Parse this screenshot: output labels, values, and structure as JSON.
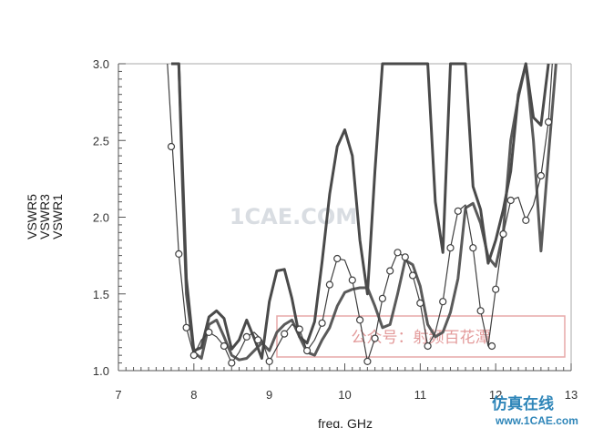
{
  "chart_data": {
    "type": "line",
    "xlabel": "freq, GHz",
    "ylabels": [
      "VSWR5",
      "VSWR3",
      "VSWR1"
    ],
    "xlim": [
      7,
      13
    ],
    "ylim": [
      1.0,
      3.0
    ],
    "x_ticks": [
      "7",
      "8",
      "9",
      "10",
      "11",
      "12",
      "13"
    ],
    "y_ticks": [
      "1.0",
      "1.5",
      "2.0",
      "2.5",
      "3.0"
    ],
    "series": [
      {
        "name": "VSWR5",
        "color": "#3f3f3f",
        "marker": "circle",
        "x": [
          7.65,
          7.8,
          7.9,
          8.0,
          8.1,
          8.2,
          8.3,
          8.4,
          8.5,
          8.6,
          8.7,
          8.8,
          8.9,
          9.0,
          9.1,
          9.2,
          9.3,
          9.4,
          9.5,
          9.6,
          9.7,
          9.8,
          9.9,
          10.0,
          10.1,
          10.2,
          10.3,
          10.4,
          10.5,
          10.6,
          10.7,
          10.8,
          10.9,
          11.0,
          11.1,
          11.2,
          11.3,
          11.4,
          11.5,
          11.6,
          11.7,
          11.8,
          11.9,
          12.0,
          12.1,
          12.2,
          12.3,
          12.4,
          12.5,
          12.6,
          12.7,
          12.75
        ],
        "y": [
          3.0,
          1.76,
          1.28,
          1.1,
          1.2,
          1.25,
          1.22,
          1.16,
          1.05,
          1.12,
          1.22,
          1.25,
          1.2,
          1.06,
          1.15,
          1.24,
          1.3,
          1.27,
          1.13,
          1.2,
          1.31,
          1.56,
          1.73,
          1.72,
          1.59,
          1.33,
          1.06,
          1.21,
          1.47,
          1.65,
          1.77,
          1.74,
          1.62,
          1.44,
          1.16,
          1.25,
          1.45,
          1.8,
          2.04,
          2.08,
          1.8,
          1.39,
          1.16,
          1.53,
          1.89,
          2.11,
          2.13,
          1.98,
          2.08,
          2.27,
          2.62,
          3.0
        ],
        "marker_x": [
          7.7,
          7.8,
          7.9,
          8.0,
          8.2,
          8.4,
          8.5,
          8.7,
          8.85,
          9.0,
          9.2,
          9.4,
          9.5,
          9.7,
          9.8,
          9.9,
          10.1,
          10.2,
          10.3,
          10.4,
          10.5,
          10.6,
          10.7,
          10.8,
          10.9,
          11.0,
          11.1,
          11.3,
          11.4,
          11.5,
          11.7,
          11.8,
          11.95,
          12.0,
          12.1,
          12.2,
          12.4,
          12.6,
          12.7
        ],
        "marker_y": [
          2.46,
          1.76,
          1.28,
          1.1,
          1.25,
          1.16,
          1.05,
          1.22,
          1.2,
          1.06,
          1.24,
          1.27,
          1.13,
          1.31,
          1.56,
          1.73,
          1.59,
          1.33,
          1.06,
          1.21,
          1.47,
          1.65,
          1.77,
          1.74,
          1.62,
          1.44,
          1.16,
          1.45,
          1.8,
          2.04,
          1.8,
          1.39,
          1.16,
          1.53,
          1.89,
          2.11,
          1.98,
          2.27,
          2.62
        ]
      },
      {
        "name": "VSWR3",
        "color": "#4a4a4a",
        "marker": "none",
        "x": [
          7.7,
          7.8,
          7.9,
          8.0,
          8.1,
          8.2,
          8.3,
          8.4,
          8.5,
          8.6,
          8.7,
          8.8,
          8.9,
          9.0,
          9.1,
          9.2,
          9.3,
          9.4,
          9.5,
          9.6,
          9.7,
          9.8,
          9.9,
          10.0,
          10.1,
          10.2,
          10.3,
          10.4,
          10.5,
          10.6,
          10.7,
          10.8,
          10.9,
          11.0,
          11.1,
          11.2,
          11.3,
          11.4,
          11.5,
          11.6,
          11.7,
          11.8,
          11.9,
          12.0,
          12.1,
          12.2,
          12.3,
          12.4,
          12.5,
          12.6,
          12.7
        ],
        "y": [
          3.0,
          3.0,
          1.6,
          1.13,
          1.15,
          1.35,
          1.39,
          1.34,
          1.14,
          1.2,
          1.33,
          1.21,
          1.08,
          1.45,
          1.65,
          1.66,
          1.47,
          1.22,
          1.18,
          1.32,
          1.71,
          2.15,
          2.46,
          2.57,
          2.4,
          1.85,
          1.5,
          2.3,
          3.0,
          3.0,
          3.0,
          3.0,
          3.0,
          3.0,
          3.0,
          2.1,
          1.77,
          3.0,
          3.0,
          3.0,
          2.2,
          2.05,
          1.7,
          1.85,
          2.05,
          2.3,
          2.8,
          3.0,
          2.65,
          2.6,
          3.0
        ]
      },
      {
        "name": "VSWR1",
        "color": "#5a5a5a",
        "marker": "none",
        "x": [
          7.75,
          7.8,
          7.85,
          7.9,
          8.0,
          8.1,
          8.2,
          8.3,
          8.4,
          8.5,
          8.6,
          8.7,
          8.8,
          8.9,
          9.0,
          9.1,
          9.2,
          9.3,
          9.4,
          9.5,
          9.6,
          9.7,
          9.8,
          9.9,
          10.0,
          10.1,
          10.2,
          10.3,
          10.4,
          10.5,
          10.6,
          10.7,
          10.8,
          10.9,
          11.0,
          11.1,
          11.2,
          11.3,
          11.4,
          11.5,
          11.6,
          11.7,
          11.8,
          11.9,
          12.0,
          12.1,
          12.2,
          12.3,
          12.4,
          12.5,
          12.6,
          12.7,
          12.8
        ],
        "y": [
          3.0,
          3.0,
          2.2,
          1.5,
          1.12,
          1.08,
          1.3,
          1.33,
          1.22,
          1.1,
          1.07,
          1.08,
          1.13,
          1.18,
          1.13,
          1.25,
          1.3,
          1.33,
          1.22,
          1.12,
          1.1,
          1.2,
          1.28,
          1.42,
          1.51,
          1.53,
          1.54,
          1.54,
          1.42,
          1.28,
          1.3,
          1.5,
          1.72,
          1.69,
          1.55,
          1.3,
          1.22,
          1.25,
          1.38,
          1.6,
          2.06,
          2.09,
          1.96,
          1.74,
          1.68,
          1.9,
          2.5,
          2.78,
          3.0,
          2.5,
          1.78,
          2.4,
          3.0
        ]
      }
    ]
  },
  "watermarks": {
    "center": "1CAE.COM",
    "stamp": "公众号：射频百花潭",
    "logo": "仿真在线",
    "url": "www.1CAE.com"
  }
}
